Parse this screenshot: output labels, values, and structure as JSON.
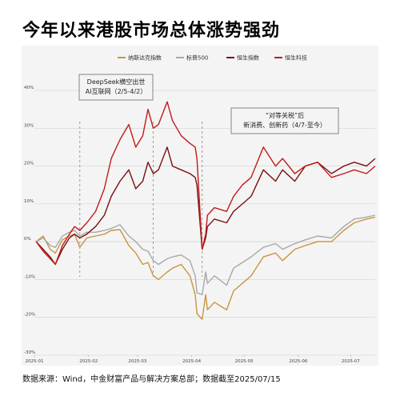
{
  "title": "今年以来港股市场总体涨势强劲",
  "source": "数据来源：Wind，中金财富产品与解决方案总部；数据截至2025/07/15",
  "colors": {
    "nasdaq": "#c8953f",
    "sp500": "#a8a8a8",
    "hsi": "#7a1010",
    "hstech": "#c41a1a",
    "gridline": "#cccccc",
    "dashed": "#888888",
    "card": "#f4f4f4"
  },
  "annotations": [
    {
      "lines": [
        "DeepSeek横空出世",
        "AI互联网（2/5-4/2）"
      ]
    },
    {
      "lines": [
        "“对等关税”后",
        "新消费、创新药（4/7-至今）"
      ]
    }
  ],
  "chart_data": {
    "type": "line",
    "ylim": [
      -30,
      40
    ],
    "yticks": [
      -30,
      -20,
      -10,
      0,
      10,
      20,
      30,
      40
    ],
    "ytick_labels": [
      "-30%",
      "-20%",
      "-10%",
      "0%",
      "10%",
      "20%",
      "30%",
      "40%"
    ],
    "xticks": [
      "2025-01",
      "2025-02",
      "2025-03",
      "2025-04",
      "2025-05",
      "2025-06",
      "2025-07"
    ],
    "x_range": [
      "2025-01-01",
      "2025-07-15"
    ],
    "grid": "horizontal",
    "legend_position": "top",
    "vlines": [
      "2025-01-27",
      "2025-03-10",
      "2025-04-07"
    ],
    "series": [
      {
        "name": "纳斯达克指数",
        "color_key": "nasdaq",
        "points": [
          [
            "2025-01-02",
            0
          ],
          [
            "2025-01-06",
            1.5
          ],
          [
            "2025-01-10",
            -2
          ],
          [
            "2025-01-13",
            -3
          ],
          [
            "2025-01-17",
            0.5
          ],
          [
            "2025-01-21",
            1.5
          ],
          [
            "2025-01-24",
            2
          ],
          [
            "2025-01-27",
            -1.5
          ],
          [
            "2025-01-31",
            1
          ],
          [
            "2025-02-05",
            1.5
          ],
          [
            "2025-02-10",
            2
          ],
          [
            "2025-02-14",
            3
          ],
          [
            "2025-02-19",
            3.2
          ],
          [
            "2025-02-24",
            -1
          ],
          [
            "2025-02-28",
            -3
          ],
          [
            "2025-03-04",
            -6
          ],
          [
            "2025-03-07",
            -5.5
          ],
          [
            "2025-03-10",
            -9
          ],
          [
            "2025-03-13",
            -10
          ],
          [
            "2025-03-18",
            -8
          ],
          [
            "2025-03-21",
            -7
          ],
          [
            "2025-03-26",
            -6
          ],
          [
            "2025-03-31",
            -9
          ],
          [
            "2025-04-03",
            -14
          ],
          [
            "2025-04-04",
            -19
          ],
          [
            "2025-04-07",
            -20.5
          ],
          [
            "2025-04-09",
            -14
          ],
          [
            "2025-04-10",
            -18
          ],
          [
            "2025-04-14",
            -16
          ],
          [
            "2025-04-21",
            -18
          ],
          [
            "2025-04-25",
            -13
          ],
          [
            "2025-04-30",
            -11
          ],
          [
            "2025-05-05",
            -9
          ],
          [
            "2025-05-12",
            -4
          ],
          [
            "2025-05-19",
            -3
          ],
          [
            "2025-05-23",
            -5
          ],
          [
            "2025-05-30",
            -2
          ],
          [
            "2025-06-05",
            -1
          ],
          [
            "2025-06-12",
            0
          ],
          [
            "2025-06-20",
            0
          ],
          [
            "2025-06-27",
            3
          ],
          [
            "2025-07-03",
            5
          ],
          [
            "2025-07-10",
            6
          ],
          [
            "2025-07-15",
            6.5
          ]
        ]
      },
      {
        "name": "标普500",
        "color_key": "sp500",
        "points": [
          [
            "2025-01-02",
            0
          ],
          [
            "2025-01-06",
            1
          ],
          [
            "2025-01-10",
            -1
          ],
          [
            "2025-01-13",
            -1.5
          ],
          [
            "2025-01-17",
            1.5
          ],
          [
            "2025-01-21",
            2.5
          ],
          [
            "2025-01-24",
            3
          ],
          [
            "2025-01-27",
            1.5
          ],
          [
            "2025-01-31",
            2.5
          ],
          [
            "2025-02-05",
            2.5
          ],
          [
            "2025-02-10",
            3
          ],
          [
            "2025-02-14",
            3.5
          ],
          [
            "2025-02-19",
            4.5
          ],
          [
            "2025-02-24",
            1.5
          ],
          [
            "2025-02-28",
            0
          ],
          [
            "2025-03-04",
            -2
          ],
          [
            "2025-03-07",
            -2.5
          ],
          [
            "2025-03-10",
            -5
          ],
          [
            "2025-03-13",
            -6
          ],
          [
            "2025-03-18",
            -4.5
          ],
          [
            "2025-03-21",
            -4
          ],
          [
            "2025-03-26",
            -3.5
          ],
          [
            "2025-03-31",
            -5
          ],
          [
            "2025-04-03",
            -9
          ],
          [
            "2025-04-04",
            -13.5
          ],
          [
            "2025-04-07",
            -14
          ],
          [
            "2025-04-09",
            -8
          ],
          [
            "2025-04-10",
            -11
          ],
          [
            "2025-04-14",
            -9
          ],
          [
            "2025-04-21",
            -11.5
          ],
          [
            "2025-04-25",
            -7
          ],
          [
            "2025-04-30",
            -5.5
          ],
          [
            "2025-05-05",
            -4
          ],
          [
            "2025-05-12",
            -1.5
          ],
          [
            "2025-05-19",
            -0.5
          ],
          [
            "2025-05-23",
            -2
          ],
          [
            "2025-05-30",
            -0.5
          ],
          [
            "2025-06-05",
            0.5
          ],
          [
            "2025-06-12",
            1.5
          ],
          [
            "2025-06-20",
            1
          ],
          [
            "2025-06-27",
            4
          ],
          [
            "2025-07-03",
            6
          ],
          [
            "2025-07-10",
            6.5
          ],
          [
            "2025-07-15",
            7
          ]
        ]
      },
      {
        "name": "恒生指数",
        "color_key": "hsi",
        "points": [
          [
            "2025-01-02",
            0
          ],
          [
            "2025-01-06",
            -2
          ],
          [
            "2025-01-10",
            -4
          ],
          [
            "2025-01-13",
            -6
          ],
          [
            "2025-01-17",
            -2
          ],
          [
            "2025-01-21",
            1
          ],
          [
            "2025-01-24",
            2
          ],
          [
            "2025-01-27",
            1
          ],
          [
            "2025-01-31",
            2
          ],
          [
            "2025-02-05",
            4
          ],
          [
            "2025-02-10",
            7
          ],
          [
            "2025-02-14",
            12
          ],
          [
            "2025-02-19",
            16
          ],
          [
            "2025-02-24",
            19
          ],
          [
            "2025-02-28",
            14
          ],
          [
            "2025-03-04",
            16
          ],
          [
            "2025-03-07",
            21
          ],
          [
            "2025-03-10",
            18
          ],
          [
            "2025-03-13",
            19
          ],
          [
            "2025-03-18",
            25
          ],
          [
            "2025-03-21",
            20
          ],
          [
            "2025-03-26",
            19
          ],
          [
            "2025-03-31",
            18
          ],
          [
            "2025-04-03",
            17
          ],
          [
            "2025-04-04",
            15
          ],
          [
            "2025-04-07",
            -2
          ],
          [
            "2025-04-09",
            1
          ],
          [
            "2025-04-10",
            4
          ],
          [
            "2025-04-14",
            6
          ],
          [
            "2025-04-21",
            5
          ],
          [
            "2025-04-25",
            8
          ],
          [
            "2025-04-30",
            10
          ],
          [
            "2025-05-05",
            12
          ],
          [
            "2025-05-12",
            19
          ],
          [
            "2025-05-19",
            16
          ],
          [
            "2025-05-23",
            19
          ],
          [
            "2025-05-30",
            16
          ],
          [
            "2025-06-05",
            20
          ],
          [
            "2025-06-12",
            21
          ],
          [
            "2025-06-20",
            18
          ],
          [
            "2025-06-27",
            20
          ],
          [
            "2025-07-03",
            21
          ],
          [
            "2025-07-10",
            20
          ],
          [
            "2025-07-15",
            22
          ]
        ]
      },
      {
        "name": "恒生科技",
        "color_key": "hstech",
        "points": [
          [
            "2025-01-02",
            0
          ],
          [
            "2025-01-06",
            -2.5
          ],
          [
            "2025-01-10",
            -4.5
          ],
          [
            "2025-01-13",
            -6
          ],
          [
            "2025-01-17",
            -1
          ],
          [
            "2025-01-21",
            2
          ],
          [
            "2025-01-24",
            4
          ],
          [
            "2025-01-27",
            3
          ],
          [
            "2025-01-31",
            5
          ],
          [
            "2025-02-05",
            8
          ],
          [
            "2025-02-10",
            14
          ],
          [
            "2025-02-14",
            22
          ],
          [
            "2025-02-19",
            27
          ],
          [
            "2025-02-24",
            31
          ],
          [
            "2025-02-28",
            25
          ],
          [
            "2025-03-04",
            28
          ],
          [
            "2025-03-07",
            35
          ],
          [
            "2025-03-10",
            30
          ],
          [
            "2025-03-13",
            31
          ],
          [
            "2025-03-18",
            37
          ],
          [
            "2025-03-21",
            32
          ],
          [
            "2025-03-26",
            28
          ],
          [
            "2025-03-31",
            26
          ],
          [
            "2025-04-03",
            25
          ],
          [
            "2025-04-04",
            22
          ],
          [
            "2025-04-07",
            -2
          ],
          [
            "2025-04-09",
            2
          ],
          [
            "2025-04-10",
            7
          ],
          [
            "2025-04-14",
            9
          ],
          [
            "2025-04-21",
            8
          ],
          [
            "2025-04-25",
            12
          ],
          [
            "2025-04-30",
            15
          ],
          [
            "2025-05-05",
            17
          ],
          [
            "2025-05-12",
            25
          ],
          [
            "2025-05-19",
            20
          ],
          [
            "2025-05-23",
            22
          ],
          [
            "2025-05-30",
            18
          ],
          [
            "2025-06-05",
            20
          ],
          [
            "2025-06-12",
            21
          ],
          [
            "2025-06-20",
            17
          ],
          [
            "2025-06-27",
            18
          ],
          [
            "2025-07-03",
            19
          ],
          [
            "2025-07-10",
            18
          ],
          [
            "2025-07-15",
            20
          ]
        ]
      }
    ]
  }
}
